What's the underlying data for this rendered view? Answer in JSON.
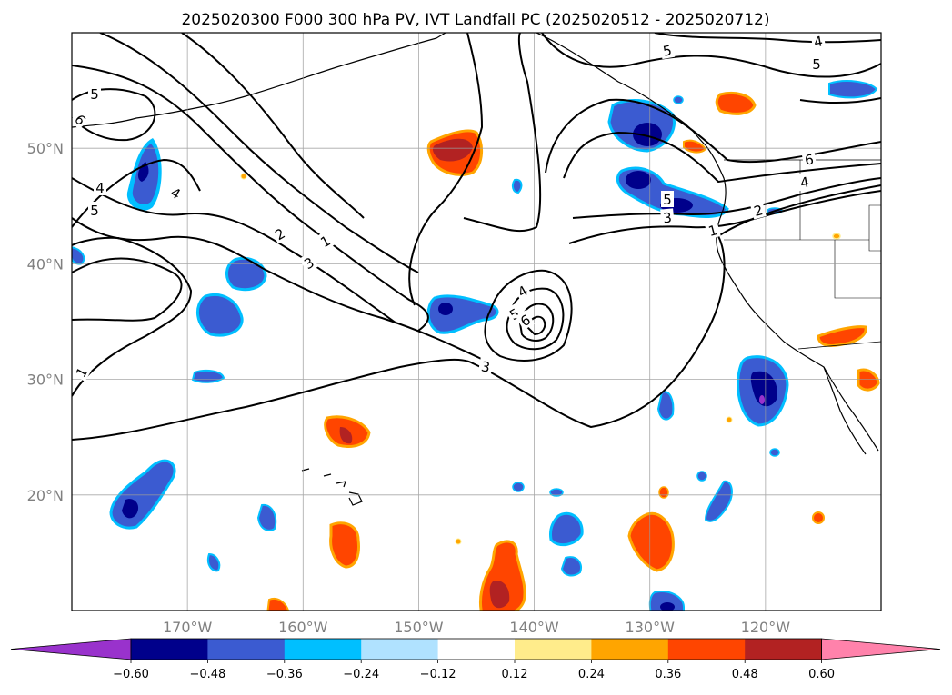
{
  "chart_data": {
    "type": "heatmap",
    "title": "2025020300 F000 300 hPa PV, IVT Landfall PC (2025020512 - 2025020712)",
    "projection": "PlateCarree",
    "lon_range": [
      180,
      110
    ],
    "lat_range": [
      10,
      60
    ],
    "xticks": [
      "170°W",
      "160°W",
      "150°W",
      "140°W",
      "130°W",
      "120°W"
    ],
    "yticks": [
      "20°N",
      "30°N",
      "40°N",
      "50°N"
    ],
    "grid": true,
    "colorbar": {
      "orientation": "horizontal",
      "extend": "both",
      "ticks": [
        "−0.60",
        "−0.48",
        "−0.36",
        "−0.24",
        "−0.12",
        "0.12",
        "0.24",
        "0.36",
        "0.48",
        "0.60"
      ],
      "colors": [
        "#9932cc",
        "#00008b",
        "#3b5bd1",
        "#00bfff",
        "#b0e2ff",
        "#ffffff",
        "#ffec8b",
        "#ffa500",
        "#ff4500",
        "#b22222",
        "#ff82ab"
      ]
    },
    "pv_contour_labels": [
      "1",
      "2",
      "3",
      "4",
      "5",
      "6"
    ]
  }
}
